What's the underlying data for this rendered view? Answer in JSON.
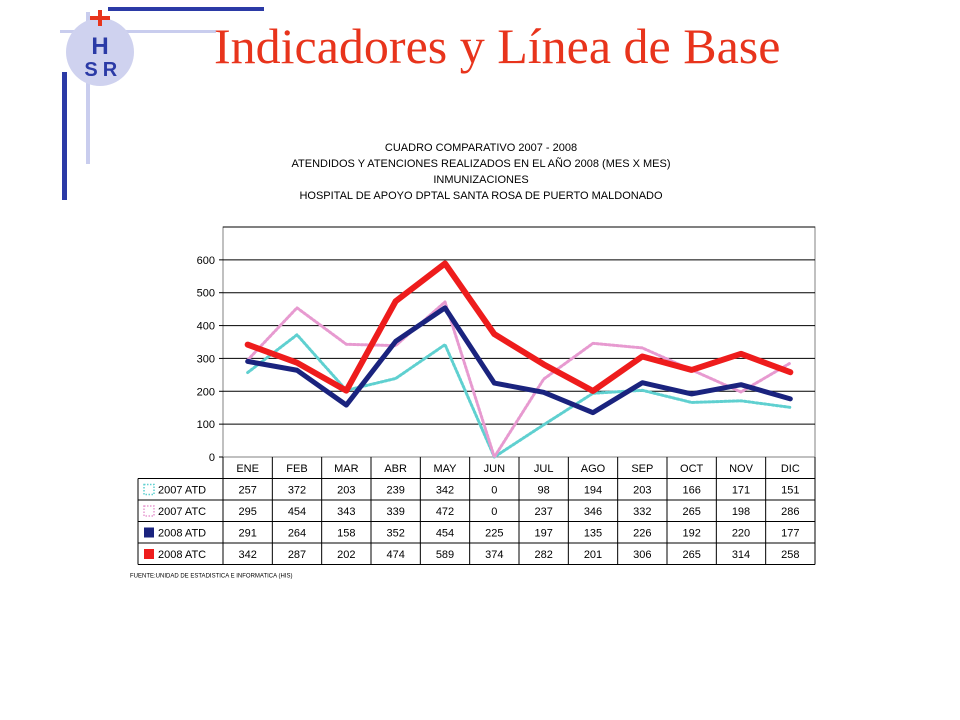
{
  "slide": {
    "title": "Indicadores y Línea de Base",
    "logo_letters": [
      "H",
      "S",
      "R"
    ]
  },
  "colors": {
    "title": "#e8341c",
    "accent_dark": "#2b3aa6",
    "accent_light": "#c9cdee",
    "series_2007_atd": "#5fd0d0",
    "series_2007_atc": "#e79ad0",
    "series_2008_atd": "#1a237e",
    "series_2008_atc": "#ee1c1c"
  },
  "chart_data": {
    "type": "line",
    "title_lines": [
      "CUADRO COMPARATIVO 2007 - 2008",
      "ATENDIDOS Y ATENCIONES REALIZADOS EN EL AÑO 2008 (MES X MES)",
      "INMUNIZACIONES",
      "HOSPITAL DE APOYO DPTAL SANTA ROSA DE PUERTO MALDONADO"
    ],
    "categories": [
      "ENE",
      "FEB",
      "MAR",
      "ABR",
      "MAY",
      "JUN",
      "JUL",
      "AGO",
      "SEP",
      "OCT",
      "NOV",
      "DIC"
    ],
    "series": [
      {
        "name": "2007 ATD",
        "values": [
          257,
          372,
          203,
          239,
          342,
          0,
          98,
          194,
          203,
          166,
          171,
          151
        ],
        "style": "dotted",
        "color": "#5fd0d0"
      },
      {
        "name": "2007 ATC",
        "values": [
          295,
          454,
          343,
          339,
          472,
          0,
          237,
          346,
          332,
          265,
          198,
          286
        ],
        "style": "dotted",
        "color": "#e79ad0"
      },
      {
        "name": "2008 ATD",
        "values": [
          291,
          264,
          158,
          352,
          454,
          225,
          197,
          135,
          226,
          192,
          220,
          177
        ],
        "style": "solid",
        "color": "#1a237e"
      },
      {
        "name": "2008 ATC",
        "values": [
          342,
          287,
          202,
          474,
          589,
          374,
          282,
          201,
          306,
          265,
          314,
          258
        ],
        "style": "solid",
        "color": "#ee1c1c"
      }
    ],
    "ylim": [
      0,
      700
    ],
    "yticks": [
      "0",
      "100",
      "200",
      "300",
      "400",
      "500",
      "600"
    ],
    "grid": true,
    "legend": "data-table-below",
    "footnote": "FUENTE:UNIDAD DE ESTADISTICA E INFORMATICA (HIS)"
  }
}
